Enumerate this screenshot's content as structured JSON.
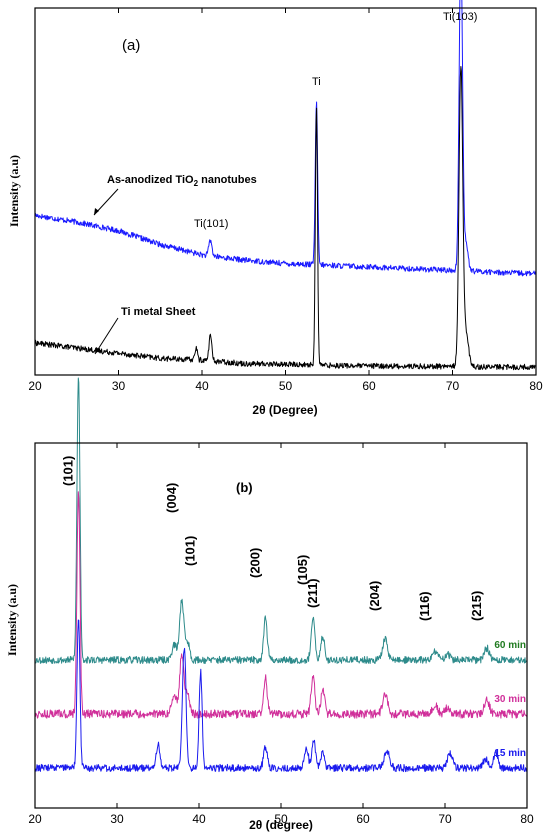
{
  "chart_data": [
    {
      "type": "line",
      "panel_label": "(a)",
      "xlabel": "2θ (Degree)",
      "ylabel": "Intensity (a.u)",
      "xlim": [
        20,
        80
      ],
      "xticks": [
        "20",
        "30",
        "40",
        "50",
        "60",
        "70",
        "80"
      ],
      "grid": false,
      "series": [
        {
          "color": "#1a1aff",
          "baseline": [
            [
              20,
              0.44
            ],
            [
              25,
              0.42
            ],
            [
              30,
              0.395
            ],
            [
              35,
              0.355
            ],
            [
              40,
              0.325
            ],
            [
              45,
              0.31
            ],
            [
              50,
              0.3
            ],
            [
              55,
              0.295
            ],
            [
              60,
              0.29
            ],
            [
              65,
              0.285
            ],
            [
              70,
              0.28
            ],
            [
              75,
              0.275
            ],
            [
              80,
              0.27
            ]
          ],
          "peaks": [
            [
              41.0,
              0.045,
              0.18
            ],
            [
              53.7,
              0.47,
              0.14
            ],
            [
              71.0,
              0.92,
              0.2
            ],
            [
              71.6,
              0.08,
              0.25
            ]
          ],
          "noise": 0.008
        },
        {
          "color": "#000000",
          "baseline": [
            [
              20,
              0.07
            ],
            [
              25,
              0.055
            ],
            [
              30,
              0.04
            ],
            [
              35,
              0.025
            ],
            [
              40,
              0.02
            ],
            [
              45,
              0.01
            ],
            [
              50,
              0.008
            ],
            [
              55,
              0.005
            ],
            [
              60,
              0.003
            ],
            [
              65,
              0.002
            ],
            [
              70,
              0.002
            ],
            [
              75,
              0.0
            ],
            [
              80,
              0.0
            ]
          ],
          "peaks": [
            [
              39.3,
              0.035,
              0.15
            ],
            [
              41.0,
              0.075,
              0.16
            ],
            [
              53.7,
              0.75,
              0.13
            ],
            [
              71.0,
              0.86,
              0.22
            ],
            [
              71.6,
              0.1,
              0.3
            ]
          ],
          "noise": 0.008
        }
      ],
      "annotations": {
        "blue_line_label_main": "As-anodized TiO",
        "blue_line_label_sub": "2",
        "blue_line_label_end": " nanotubes",
        "black_line_label": "Ti metal Sheet",
        "peak_ti101": "Ti(101)",
        "peak_ti": "Ti",
        "peak_ti103": "Ti(103)"
      }
    },
    {
      "type": "line",
      "panel_label": "(b)",
      "xlabel": "2θ (degree)",
      "ylabel": "Intensity (a.u)",
      "xlim": [
        20,
        80
      ],
      "xticks": [
        "20",
        "30",
        "40",
        "50",
        "60",
        "70",
        "80"
      ],
      "grid": false,
      "series": [
        {
          "name": "60 min",
          "color": "#2e8b8b",
          "label_color": "#1f7a1f",
          "offset": 0.36,
          "peaks": [
            [
              25.3,
              0.95,
              0.18
            ],
            [
              37.0,
              0.05,
              0.3
            ],
            [
              37.9,
              0.2,
              0.25
            ],
            [
              38.6,
              0.06,
              0.25
            ],
            [
              48.1,
              0.14,
              0.22
            ],
            [
              53.9,
              0.14,
              0.22
            ],
            [
              55.1,
              0.08,
              0.22
            ],
            [
              62.7,
              0.07,
              0.3
            ],
            [
              68.8,
              0.03,
              0.3
            ],
            [
              70.3,
              0.02,
              0.3
            ],
            [
              75.1,
              0.04,
              0.3
            ]
          ],
          "noise": 0.012
        },
        {
          "name": "30 min",
          "color": "#d02f9a",
          "label_color": "#d02f9a",
          "offset": 0.18,
          "peaks": [
            [
              25.3,
              0.75,
              0.18
            ],
            [
              37.0,
              0.06,
              0.3
            ],
            [
              37.9,
              0.2,
              0.25
            ],
            [
              38.6,
              0.07,
              0.25
            ],
            [
              48.1,
              0.12,
              0.22
            ],
            [
              53.9,
              0.13,
              0.22
            ],
            [
              55.1,
              0.08,
              0.22
            ],
            [
              62.7,
              0.07,
              0.3
            ],
            [
              68.8,
              0.03,
              0.3
            ],
            [
              70.3,
              0.02,
              0.3
            ],
            [
              75.1,
              0.05,
              0.3
            ]
          ],
          "noise": 0.014
        },
        {
          "name": "15 min",
          "color": "#1a1aee",
          "label_color": "#1a1aee",
          "offset": 0.0,
          "peaks": [
            [
              25.3,
              0.5,
              0.18
            ],
            [
              35.0,
              0.08,
              0.2
            ],
            [
              38.2,
              0.4,
              0.22
            ],
            [
              40.2,
              0.32,
              0.18
            ],
            [
              48.1,
              0.07,
              0.22
            ],
            [
              53.1,
              0.07,
              0.22
            ],
            [
              54.0,
              0.09,
              0.22
            ],
            [
              55.1,
              0.05,
              0.22
            ],
            [
              62.9,
              0.06,
              0.3
            ],
            [
              70.6,
              0.05,
              0.3
            ],
            [
              74.9,
              0.03,
              0.3
            ],
            [
              76.2,
              0.05,
              0.25
            ]
          ],
          "noise": 0.012
        }
      ],
      "hkl_labels": [
        {
          "text": "(101)",
          "x": 25.3
        },
        {
          "text": "(004)",
          "x": 37.9
        },
        {
          "text": "(101)",
          "x": 40.2
        },
        {
          "text": "(200)",
          "x": 48.1
        },
        {
          "text": "(105)",
          "x": 53.9
        },
        {
          "text": "(211)",
          "x": 55.1
        },
        {
          "text": "(204)",
          "x": 62.7
        },
        {
          "text": "(116)",
          "x": 68.8
        },
        {
          "text": "(215)",
          "x": 75.1
        }
      ]
    }
  ]
}
